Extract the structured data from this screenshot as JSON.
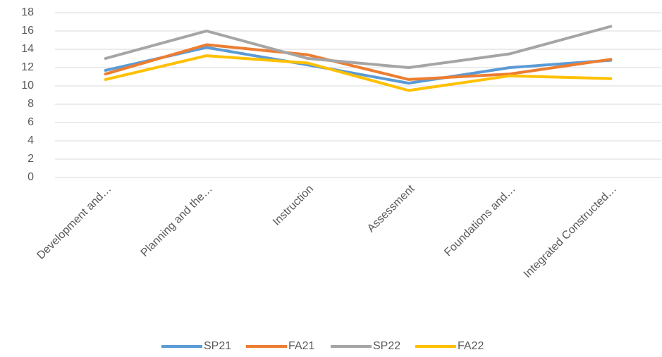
{
  "chart_data": {
    "type": "line",
    "categories": [
      "Development and…",
      "Planning and the…",
      "Instruction",
      "Assessment",
      "Foundations and…",
      "Integrated Constructed…"
    ],
    "series": [
      {
        "name": "SP21",
        "color": "#5b9bd5",
        "values": [
          11.7,
          14.2,
          12.3,
          10.3,
          12.0,
          12.8
        ]
      },
      {
        "name": "FA21",
        "color": "#ed7d31",
        "values": [
          11.3,
          14.5,
          13.4,
          10.7,
          11.3,
          12.9
        ]
      },
      {
        "name": "SP22",
        "color": "#a5a5a5",
        "values": [
          13.0,
          16.0,
          13.0,
          12.0,
          13.5,
          16.5
        ]
      },
      {
        "name": "FA22",
        "color": "#ffc000",
        "values": [
          10.7,
          13.3,
          12.5,
          9.5,
          11.1,
          10.8
        ]
      }
    ],
    "ylim": [
      0,
      18
    ],
    "yticks": [
      0,
      2,
      4,
      6,
      8,
      10,
      12,
      14,
      16,
      18
    ],
    "grid": true,
    "legend": "bottom"
  }
}
